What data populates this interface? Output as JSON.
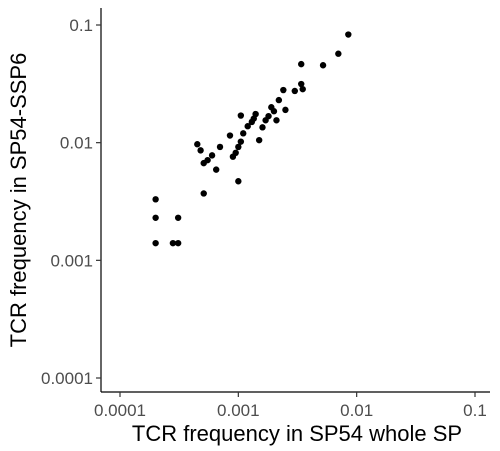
{
  "chart_data": {
    "type": "scatter",
    "title": "",
    "xlabel": "TCR frequency in SP54 whole SP",
    "ylabel": "TCR frequency in SP54-SSP6",
    "x_scale": "log10",
    "y_scale": "log10",
    "xlim": [
      0.0001,
      0.1
    ],
    "ylim": [
      0.0001,
      0.1
    ],
    "x_ticks": [
      {
        "value": 0.0001,
        "label": "0.0001"
      },
      {
        "value": 0.001,
        "label": "0.001"
      },
      {
        "value": 0.01,
        "label": "0.01"
      },
      {
        "value": 0.1,
        "label": "0.1"
      }
    ],
    "y_ticks": [
      {
        "value": 0.0001,
        "label": "0.0001"
      },
      {
        "value": 0.001,
        "label": "0.001"
      },
      {
        "value": 0.01,
        "label": "0.01"
      },
      {
        "value": 0.1,
        "label": "0.1"
      }
    ],
    "grid": false,
    "legend": "none",
    "point_color": "#000000",
    "series": [
      {
        "points": [
          [
            0.0002,
            0.0033
          ],
          [
            0.0002,
            0.0023
          ],
          [
            0.0002,
            0.0014
          ],
          [
            0.00028,
            0.0014
          ],
          [
            0.00031,
            0.0014
          ],
          [
            0.00031,
            0.0023
          ],
          [
            0.00045,
            0.0097
          ],
          [
            0.00048,
            0.0086
          ],
          [
            0.00051,
            0.0067
          ],
          [
            0.00051,
            0.0037
          ],
          [
            0.00055,
            0.0071
          ],
          [
            0.0006,
            0.0078
          ],
          [
            0.00065,
            0.0059
          ],
          [
            0.0007,
            0.0092
          ],
          [
            0.00085,
            0.0115
          ],
          [
            0.0009,
            0.0076
          ],
          [
            0.00095,
            0.0082
          ],
          [
            0.001,
            0.0092
          ],
          [
            0.001,
            0.0047
          ],
          [
            0.00105,
            0.0102
          ],
          [
            0.0011,
            0.012
          ],
          [
            0.00105,
            0.017
          ],
          [
            0.0012,
            0.0138
          ],
          [
            0.0013,
            0.015
          ],
          [
            0.00135,
            0.016
          ],
          [
            0.0014,
            0.0175
          ],
          [
            0.0015,
            0.0105
          ],
          [
            0.0016,
            0.0135
          ],
          [
            0.0017,
            0.0155
          ],
          [
            0.0018,
            0.0168
          ],
          [
            0.0019,
            0.02
          ],
          [
            0.002,
            0.0185
          ],
          [
            0.0021,
            0.0155
          ],
          [
            0.0022,
            0.023
          ],
          [
            0.0024,
            0.028
          ],
          [
            0.0025,
            0.019
          ],
          [
            0.003,
            0.0275
          ],
          [
            0.0034,
            0.0315
          ],
          [
            0.0035,
            0.0285
          ],
          [
            0.0034,
            0.0465
          ],
          [
            0.0052,
            0.0455
          ],
          [
            0.007,
            0.057
          ],
          [
            0.0085,
            0.083
          ]
        ]
      }
    ]
  }
}
